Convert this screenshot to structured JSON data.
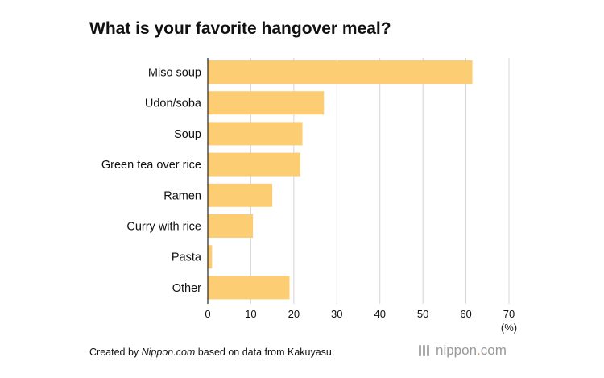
{
  "chart_data": {
    "type": "bar",
    "orientation": "horizontal",
    "title": "What is your favorite hangover meal?",
    "categories": [
      "Miso soup",
      "Udon/soba",
      "Soup",
      "Green tea over rice",
      "Ramen",
      "Curry with rice",
      "Pasta",
      "Other"
    ],
    "values": [
      61.5,
      27,
      22,
      21.5,
      15,
      10.5,
      1,
      19
    ],
    "xlim": [
      0,
      70
    ],
    "xticks": [
      0,
      10,
      20,
      30,
      40,
      50,
      60,
      70
    ],
    "unit_label": "(%)",
    "grid": true,
    "bar_color": "#fdcd74"
  },
  "footer": {
    "credit_prefix": "Created by ",
    "credit_source": "Nippon.com",
    "credit_suffix": " based on data from Kakuyasu.",
    "logo_name": "nippon",
    "logo_dot": ".",
    "logo_tld": "com"
  }
}
